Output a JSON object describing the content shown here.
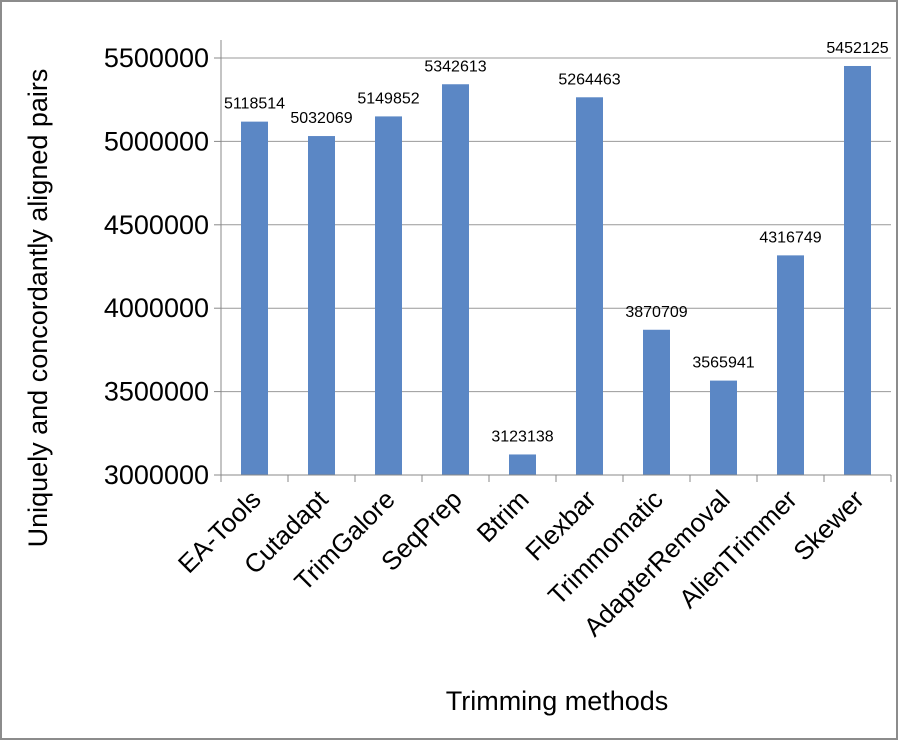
{
  "chart_data": {
    "type": "bar",
    "categories": [
      "EA-Tools",
      "Cutadapt",
      "TrimGalore",
      "SeqPrep",
      "Btrim",
      "Flexbar",
      "Trimmomatic",
      "AdapterRemoval",
      "AlienTrimmer",
      "Skewer"
    ],
    "values": [
      5118514,
      5032069,
      5149852,
      5342613,
      3123138,
      5264463,
      3870709,
      3565941,
      4316749,
      5452125
    ],
    "data_labels": [
      "5118514",
      "5032069",
      "5149852",
      "5342613",
      "3123138",
      "5264463",
      "3870709",
      "3565941",
      "4316749",
      "5452125"
    ],
    "xlabel": "Trimming methods",
    "ylabel": "Uniquely and concordantly aligned pairs",
    "ylim": [
      3000000,
      5500000
    ],
    "yticks": [
      3000000,
      3500000,
      4000000,
      4500000,
      5000000,
      5500000
    ],
    "ytick_labels": [
      "3000000",
      "3500000",
      "4000000",
      "4500000",
      "5000000",
      "5500000"
    ],
    "grid": true,
    "bar_color": "#5b87c5",
    "grid_color": "#999999",
    "frame_color": "#8c8c8c"
  }
}
